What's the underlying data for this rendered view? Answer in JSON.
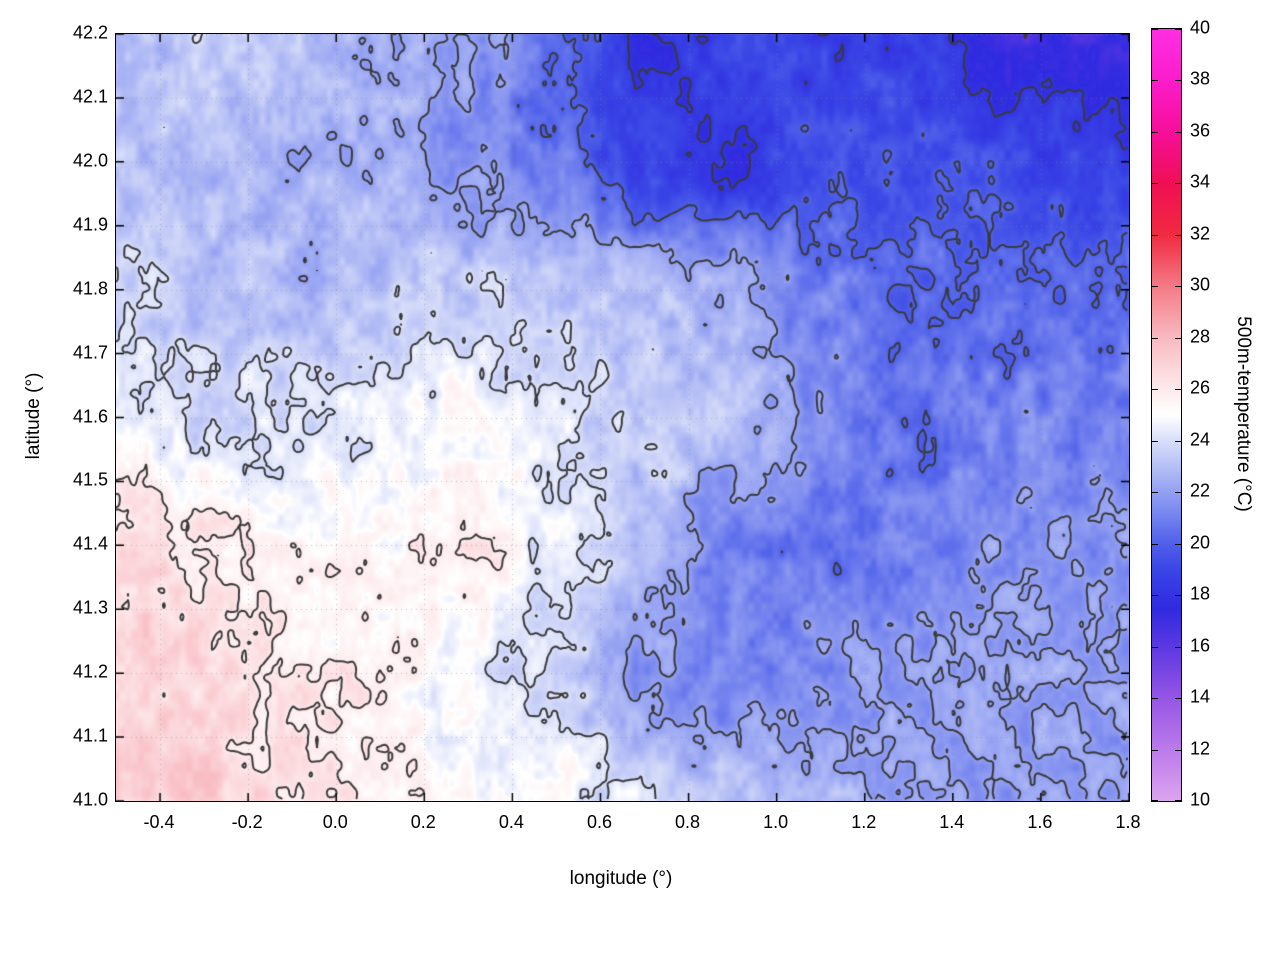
{
  "chart_data": {
    "type": "heatmap",
    "title": "",
    "xlabel": "longitude (°)",
    "ylabel": "latitude (°)",
    "colorbar_label": "500m-temperature (°C)",
    "x_range": [
      -0.5,
      1.8
    ],
    "y_range": [
      41.0,
      42.2
    ],
    "x_ticks": [
      "-0.4",
      "-0.2",
      "0.0",
      "0.2",
      "0.4",
      "0.6",
      "0.8",
      "1.0",
      "1.2",
      "1.4",
      "1.6",
      "1.8"
    ],
    "y_ticks": [
      "41.0",
      "41.1",
      "41.2",
      "41.3",
      "41.4",
      "41.5",
      "41.6",
      "41.7",
      "41.8",
      "41.9",
      "42.0",
      "42.1",
      "42.2"
    ],
    "colorbar_range": [
      10,
      40
    ],
    "colorbar_ticks": [
      "10",
      "12",
      "14",
      "16",
      "18",
      "20",
      "22",
      "24",
      "26",
      "28",
      "30",
      "32",
      "34",
      "36",
      "38",
      "40"
    ],
    "contour_levels": [
      16,
      18,
      20,
      22,
      24,
      26,
      28
    ],
    "contour_color": "#3a3a3a",
    "grid_lines": true,
    "palette": [
      [
        10,
        "#dba4ef"
      ],
      [
        12,
        "#bb7aea"
      ],
      [
        14,
        "#9556e5"
      ],
      [
        16,
        "#5c38e2"
      ],
      [
        17.5,
        "#2f2ae0"
      ],
      [
        19,
        "#3a46e6"
      ],
      [
        20,
        "#4f60ea"
      ],
      [
        22,
        "#93a0f2"
      ],
      [
        24,
        "#d8def9"
      ],
      [
        25,
        "#ffffff"
      ],
      [
        26,
        "#fdeaec"
      ],
      [
        28,
        "#f8b9c0"
      ],
      [
        30,
        "#f47a86"
      ],
      [
        32,
        "#f02a40"
      ],
      [
        34,
        "#f00f55"
      ],
      [
        36,
        "#f60f9a"
      ],
      [
        38,
        "#fb1ccb"
      ],
      [
        40,
        "#ff2fe3"
      ]
    ],
    "grid": {
      "lon": [
        -0.5,
        -0.3,
        -0.1,
        0.1,
        0.3,
        0.5,
        0.7,
        0.9,
        1.1,
        1.3,
        1.5,
        1.8
      ],
      "lat": [
        41.0,
        41.2,
        41.4,
        41.6,
        41.8,
        42.0,
        42.2
      ],
      "values": [
        [
          27.2,
          27.0,
          26.3,
          26.0,
          25.2,
          24.8,
          24.0,
          23.0,
          22.5,
          22.2,
          22.0,
          22.0
        ],
        [
          27.0,
          26.6,
          26.0,
          25.5,
          24.6,
          23.6,
          21.8,
          21.2,
          21.6,
          22.0,
          22.2,
          22.0
        ],
        [
          26.4,
          26.0,
          25.2,
          25.4,
          25.8,
          24.4,
          23.0,
          21.2,
          20.6,
          21.0,
          21.8,
          21.6
        ],
        [
          24.6,
          23.8,
          24.0,
          24.6,
          25.0,
          24.2,
          23.6,
          23.0,
          21.6,
          20.6,
          21.0,
          21.0
        ],
        [
          23.6,
          23.2,
          22.8,
          23.0,
          23.4,
          23.4,
          23.0,
          22.4,
          21.0,
          20.2,
          20.4,
          20.2
        ],
        [
          23.2,
          23.0,
          22.6,
          22.4,
          21.6,
          20.6,
          18.6,
          18.2,
          19.6,
          19.6,
          19.2,
          18.6
        ],
        [
          23.0,
          23.4,
          23.0,
          22.5,
          22.0,
          20.5,
          18.0,
          19.0,
          18.6,
          18.8,
          16.8,
          17.0
        ]
      ]
    }
  }
}
